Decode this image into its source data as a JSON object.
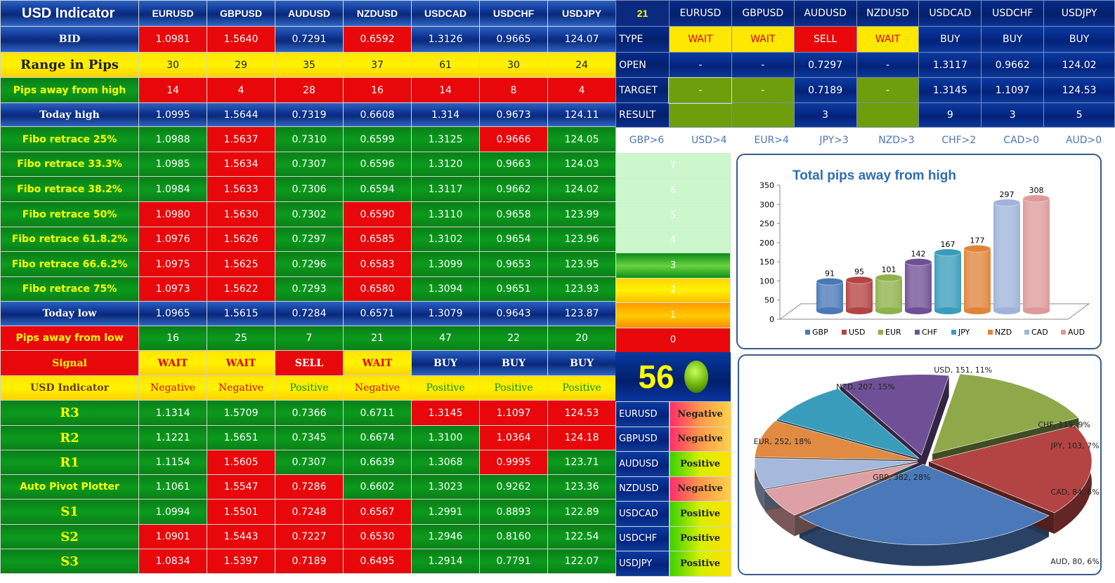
{
  "main": {
    "corner_label": "USD Indicator",
    "pairs": [
      "EURUSD",
      "GBPUSD",
      "AUDUSD",
      "NZDUSD",
      "USDCAD",
      "USDCHF",
      "USDJPY"
    ],
    "rows": [
      {
        "label": "BID",
        "style": "blue",
        "lblcls": "big",
        "cells": [
          [
            "1.0981",
            "red"
          ],
          [
            "1.5640",
            "red"
          ],
          [
            "0.7291",
            "blue"
          ],
          [
            "0.6592",
            "red"
          ],
          [
            "1.3126",
            "blue"
          ],
          [
            "0.9665",
            "blue"
          ],
          [
            "124.07",
            "blue"
          ]
        ]
      },
      {
        "label": "Range in Pips",
        "style": "yel",
        "lblcls": "sig-d",
        "cells": [
          [
            "30",
            "yel"
          ],
          [
            "29",
            "yel"
          ],
          [
            "35",
            "yel"
          ],
          [
            "37",
            "yel"
          ],
          [
            "61",
            "yel"
          ],
          [
            "30",
            "yel"
          ],
          [
            "24",
            "yel"
          ]
        ]
      },
      {
        "label": "Pips away from high",
        "style": "grn",
        "lblcls": "sm",
        "cells": [
          [
            "14",
            "red"
          ],
          [
            "4",
            "red"
          ],
          [
            "28",
            "red"
          ],
          [
            "16",
            "red"
          ],
          [
            "14",
            "red"
          ],
          [
            "8",
            "red"
          ],
          [
            "4",
            "red"
          ]
        ]
      },
      {
        "label": "Today high",
        "style": "blue",
        "lblcls": "big",
        "cells": [
          [
            "1.0995",
            "blue"
          ],
          [
            "1.5644",
            "blue"
          ],
          [
            "0.7319",
            "blue"
          ],
          [
            "0.6608",
            "blue"
          ],
          [
            "1.314",
            "blue"
          ],
          [
            "0.9673",
            "blue"
          ],
          [
            "124.11",
            "blue"
          ]
        ]
      },
      {
        "label": "Fibo retrace 25%",
        "style": "grn",
        "lblcls": "",
        "cells": [
          [
            "1.0988",
            "grn"
          ],
          [
            "1.5637",
            "red"
          ],
          [
            "0.7310",
            "grn"
          ],
          [
            "0.6599",
            "grn"
          ],
          [
            "1.3125",
            "grn"
          ],
          [
            "0.9666",
            "red"
          ],
          [
            "124.05",
            "grn"
          ]
        ]
      },
      {
        "label": "Fibo retrace 33.3%",
        "style": "grn",
        "lblcls": "",
        "cells": [
          [
            "1.0985",
            "grn"
          ],
          [
            "1.5634",
            "red"
          ],
          [
            "0.7307",
            "grn"
          ],
          [
            "0.6596",
            "grn"
          ],
          [
            "1.3120",
            "grn"
          ],
          [
            "0.9663",
            "grn"
          ],
          [
            "124.03",
            "grn"
          ]
        ]
      },
      {
        "label": "Fibo retrace 38.2%",
        "style": "grn",
        "lblcls": "",
        "cells": [
          [
            "1.0984",
            "grn"
          ],
          [
            "1.5633",
            "red"
          ],
          [
            "0.7306",
            "grn"
          ],
          [
            "0.6594",
            "grn"
          ],
          [
            "1.3117",
            "grn"
          ],
          [
            "0.9662",
            "grn"
          ],
          [
            "124.02",
            "grn"
          ]
        ]
      },
      {
        "label": "Fibo retrace 50%",
        "style": "grn",
        "lblcls": "",
        "cells": [
          [
            "1.0980",
            "red"
          ],
          [
            "1.5630",
            "red"
          ],
          [
            "0.7302",
            "grn"
          ],
          [
            "0.6590",
            "red"
          ],
          [
            "1.3110",
            "grn"
          ],
          [
            "0.9658",
            "grn"
          ],
          [
            "123.99",
            "grn"
          ]
        ]
      },
      {
        "label": "Fibo retrace 61.8.2%",
        "style": "grn",
        "lblcls": "",
        "cells": [
          [
            "1.0976",
            "red"
          ],
          [
            "1.5626",
            "red"
          ],
          [
            "0.7297",
            "grn"
          ],
          [
            "0.6585",
            "red"
          ],
          [
            "1.3102",
            "grn"
          ],
          [
            "0.9654",
            "grn"
          ],
          [
            "123.96",
            "grn"
          ]
        ]
      },
      {
        "label": "Fibo retrace 66.6.2%",
        "style": "grn",
        "lblcls": "",
        "cells": [
          [
            "1.0975",
            "red"
          ],
          [
            "1.5625",
            "red"
          ],
          [
            "0.7296",
            "grn"
          ],
          [
            "0.6583",
            "red"
          ],
          [
            "1.3099",
            "grn"
          ],
          [
            "0.9653",
            "grn"
          ],
          [
            "123.95",
            "grn"
          ]
        ]
      },
      {
        "label": "Fibo retrace 75%",
        "style": "grn",
        "lblcls": "",
        "cells": [
          [
            "1.0973",
            "red"
          ],
          [
            "1.5622",
            "red"
          ],
          [
            "0.7293",
            "grn"
          ],
          [
            "0.6580",
            "red"
          ],
          [
            "1.3094",
            "grn"
          ],
          [
            "0.9651",
            "grn"
          ],
          [
            "123.93",
            "grn"
          ]
        ]
      },
      {
        "label": "Today low",
        "style": "blue",
        "lblcls": "big",
        "cells": [
          [
            "1.0965",
            "blue"
          ],
          [
            "1.5615",
            "blue"
          ],
          [
            "0.7284",
            "blue"
          ],
          [
            "0.6571",
            "blue"
          ],
          [
            "1.3079",
            "blue"
          ],
          [
            "0.9643",
            "blue"
          ],
          [
            "123.87",
            "blue"
          ]
        ]
      },
      {
        "label": "Pips away from low",
        "style": "red",
        "lblcls": "sm",
        "cells": [
          [
            "16",
            "grn"
          ],
          [
            "25",
            "grn"
          ],
          [
            "7",
            "grn"
          ],
          [
            "21",
            "grn"
          ],
          [
            "47",
            "grn"
          ],
          [
            "22",
            "grn"
          ],
          [
            "20",
            "grn"
          ]
        ]
      },
      {
        "label": "Signal",
        "style": "red",
        "lblcls": "sig",
        "cells": [
          [
            "WAIT",
            "yel red sig"
          ],
          [
            "WAIT",
            "yel red sig"
          ],
          [
            "SELL",
            "red sig"
          ],
          [
            "WAIT",
            "yel red sig"
          ],
          [
            "BUY",
            "blue sig"
          ],
          [
            "BUY",
            "blue sig"
          ],
          [
            "BUY",
            "blue sig"
          ]
        ]
      },
      {
        "label": "USD Indicator",
        "style": "yel",
        "lblcls": "sent-b",
        "cells": [
          [
            "Negative",
            "yel red sent"
          ],
          [
            "Negative",
            "yel red sent"
          ],
          [
            "Positive",
            "yel grn sent"
          ],
          [
            "Negative",
            "yel red sent"
          ],
          [
            "Positive",
            "yel grn sent"
          ],
          [
            "Positive",
            "yel grn sent"
          ],
          [
            "Positive",
            "yel grn sent"
          ]
        ]
      },
      {
        "label": "R3",
        "style": "grn",
        "lblcls": "big-s",
        "cells": [
          [
            "1.1314",
            "grn"
          ],
          [
            "1.5709",
            "grn"
          ],
          [
            "0.7366",
            "grn"
          ],
          [
            "0.6711",
            "grn"
          ],
          [
            "1.3145",
            "red"
          ],
          [
            "1.1097",
            "red"
          ],
          [
            "124.53",
            "red"
          ]
        ]
      },
      {
        "label": "R2",
        "style": "grn",
        "lblcls": "big-s",
        "cells": [
          [
            "1.1221",
            "grn"
          ],
          [
            "1.5651",
            "grn"
          ],
          [
            "0.7345",
            "grn"
          ],
          [
            "0.6674",
            "grn"
          ],
          [
            "1.3100",
            "grn"
          ],
          [
            "1.0364",
            "red"
          ],
          [
            "124.18",
            "red"
          ]
        ]
      },
      {
        "label": "R1",
        "style": "grn",
        "lblcls": "big-s",
        "cells": [
          [
            "1.1154",
            "grn"
          ],
          [
            "1.5605",
            "red"
          ],
          [
            "0.7307",
            "grn"
          ],
          [
            "0.6639",
            "grn"
          ],
          [
            "1.3068",
            "grn"
          ],
          [
            "0.9995",
            "red"
          ],
          [
            "123.71",
            "grn"
          ]
        ]
      },
      {
        "label": "Auto Pivot Plotter",
        "style": "grn",
        "lblcls": "",
        "cells": [
          [
            "1.1061",
            "grn"
          ],
          [
            "1.5547",
            "red"
          ],
          [
            "0.7286",
            "red"
          ],
          [
            "0.6602",
            "grn"
          ],
          [
            "1.3023",
            "grn"
          ],
          [
            "0.9262",
            "grn"
          ],
          [
            "123.36",
            "grn"
          ]
        ]
      },
      {
        "label": "S1",
        "style": "grn",
        "lblcls": "big-s",
        "cells": [
          [
            "1.0994",
            "grn"
          ],
          [
            "1.5501",
            "red"
          ],
          [
            "0.7248",
            "red"
          ],
          [
            "0.6567",
            "red"
          ],
          [
            "1.2991",
            "grn"
          ],
          [
            "0.8893",
            "grn"
          ],
          [
            "122.89",
            "grn"
          ]
        ]
      },
      {
        "label": "S2",
        "style": "grn",
        "lblcls": "big-s",
        "cells": [
          [
            "1.0901",
            "red"
          ],
          [
            "1.5443",
            "red"
          ],
          [
            "0.7227",
            "red"
          ],
          [
            "0.6530",
            "red"
          ],
          [
            "1.2946",
            "grn"
          ],
          [
            "0.8160",
            "grn"
          ],
          [
            "122.54",
            "grn"
          ]
        ]
      },
      {
        "label": "S3",
        "style": "grn",
        "lblcls": "big-s",
        "cells": [
          [
            "1.0834",
            "red"
          ],
          [
            "1.5397",
            "red"
          ],
          [
            "0.7189",
            "red"
          ],
          [
            "0.6495",
            "red"
          ],
          [
            "1.2914",
            "grn"
          ],
          [
            "0.7791",
            "grn"
          ],
          [
            "122.07",
            "grn"
          ]
        ]
      }
    ]
  },
  "right": {
    "score": "21",
    "pairs": [
      "EURUSD",
      "GBPUSD",
      "AUDUSD",
      "NZDUSD",
      "USDCAD",
      "USDCHF",
      "USDJPY"
    ],
    "rows": [
      {
        "label": "TYPE",
        "cells": [
          [
            "WAIT",
            "ryel"
          ],
          [
            "WAIT",
            "ryel"
          ],
          [
            "SELL",
            "rred"
          ],
          [
            "WAIT",
            "ryel"
          ],
          [
            "BUY",
            "rnavy"
          ],
          [
            "BUY",
            "rnavy"
          ],
          [
            "BUY",
            "rnavy"
          ]
        ]
      },
      {
        "label": "OPEN",
        "cells": [
          [
            "-",
            "rnavy"
          ],
          [
            "-",
            "rnavy"
          ],
          [
            "0.7297",
            "rnavy"
          ],
          [
            "-",
            "rnavy"
          ],
          [
            "1.3117",
            "rnavy"
          ],
          [
            "0.9662",
            "rnavy"
          ],
          [
            "124.02",
            "rnavy"
          ]
        ]
      },
      {
        "label": "TARGET",
        "cells": [
          [
            "-",
            "olive-t"
          ],
          [
            "-",
            "olive-t"
          ],
          [
            "0.7189",
            "rnavy"
          ],
          [
            "-",
            "olive-t"
          ],
          [
            "1.3145",
            "rnavy"
          ],
          [
            "1.1097",
            "rnavy"
          ],
          [
            "124.53",
            "rnavy"
          ]
        ]
      },
      {
        "label": "RESULT",
        "cells": [
          [
            "-",
            "olive"
          ],
          [
            "-",
            "olive"
          ],
          [
            "3",
            "rnavy"
          ],
          [
            "-",
            "olive"
          ],
          [
            "9",
            "rnavy"
          ],
          [
            "3",
            "rnavy"
          ],
          [
            "5",
            "rnavy"
          ]
        ]
      }
    ],
    "currency_ranks": [
      "GBP>6",
      "USD>4",
      "EUR>4",
      "JPY>3",
      "NZD>3",
      "CHF>2",
      "CAD>0",
      "AUD>0"
    ],
    "gauge": [
      [
        "7",
        "g-pale"
      ],
      [
        "6",
        "g-pale"
      ],
      [
        "5",
        "g-pale"
      ],
      [
        "4",
        "g-pale"
      ],
      [
        "3",
        "g-grn"
      ],
      [
        "2",
        "g-yel"
      ],
      [
        "1",
        "g-org"
      ],
      [
        "0",
        "g-red"
      ]
    ],
    "counter": "56",
    "sentiment": [
      [
        "EURUSD",
        "Negative"
      ],
      [
        "GBPUSD",
        "Negative"
      ],
      [
        "AUDUSD",
        "Positive"
      ],
      [
        "NZDUSD",
        "Negative"
      ],
      [
        "USDCAD",
        "Positive"
      ],
      [
        "USDCHF",
        "Positive"
      ],
      [
        "USDJPY",
        "Positive"
      ]
    ]
  },
  "chart_data": [
    {
      "type": "bar",
      "title": "Total pips away from high",
      "categories": [
        "GBP",
        "USD",
        "EUR",
        "CHF",
        "JPY",
        "NZD",
        "CAD",
        "AUD"
      ],
      "values": [
        91,
        95,
        101,
        142,
        167,
        177,
        297,
        308
      ],
      "colors": [
        "#4a78b8",
        "#b44343",
        "#8fb14a",
        "#6f4f95",
        "#3a9cbb",
        "#e0843a",
        "#9fb3da",
        "#dd9a9a"
      ],
      "ylim": [
        0,
        350
      ],
      "yticks": [
        0,
        50,
        100,
        150,
        200,
        250,
        300,
        350
      ],
      "grid": false,
      "legend": "bottom"
    },
    {
      "type": "pie",
      "slices": [
        {
          "label": "GBP, 382, 28%",
          "name": "GBP",
          "value": 382,
          "color": "#4a78b8"
        },
        {
          "label": "AUD, 80, 6%",
          "name": "AUD",
          "value": 80,
          "color": "#dda0a4"
        },
        {
          "label": "CAD, 84, 6%",
          "name": "CAD",
          "value": 84,
          "color": "#a6b8dc"
        },
        {
          "label": "JPY, 103, 7%",
          "name": "JPY",
          "value": 103,
          "color": "#e08a42"
        },
        {
          "label": "CHF, 119, 9%",
          "name": "CHF",
          "value": 119,
          "color": "#3a9cbb"
        },
        {
          "label": "USD, 151, 11%",
          "name": "USD",
          "value": 151,
          "color": "#6f4f95"
        },
        {
          "label": "NZD, 207, 15%",
          "name": "NZD",
          "value": 207,
          "color": "#8fa84a"
        },
        {
          "label": "EUR, 252, 18%",
          "name": "EUR",
          "value": 252,
          "color": "#b44343"
        }
      ]
    }
  ]
}
